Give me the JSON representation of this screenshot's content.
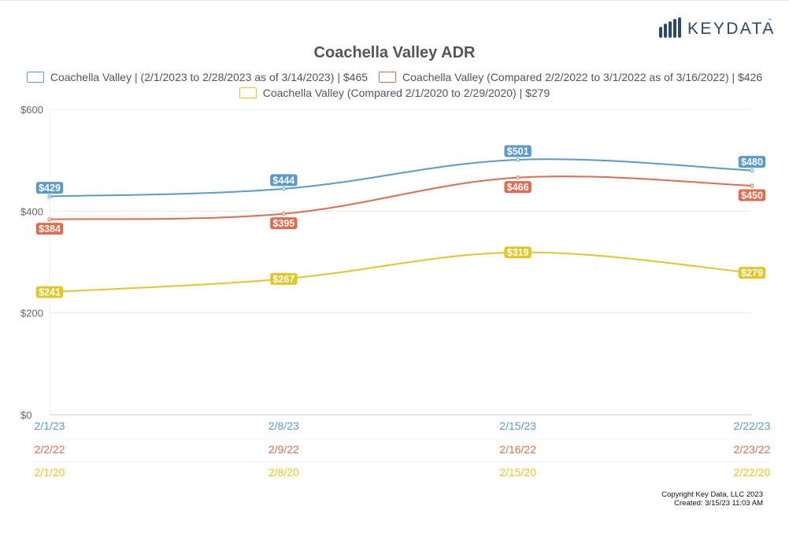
{
  "logo": {
    "text": "KEYDATA",
    "tm": "™",
    "color": "#2b4a6b"
  },
  "chart_data": {
    "type": "line",
    "title": "Coachella Valley ADR",
    "ylim": [
      0,
      600
    ],
    "yticks": [
      0,
      200,
      400,
      600
    ],
    "ytick_labels": [
      "$0",
      "$200",
      "$400",
      "$600"
    ],
    "grid": true,
    "legend_position": "top",
    "series": [
      {
        "name": "Coachella Valley | (2/1/2023 to 2/28/2023 as of 3/14/2023) | $465",
        "color": "#5b9bc8",
        "x_labels": [
          "2/1/23",
          "2/8/23",
          "2/15/23",
          "2/22/23"
        ],
        "values": [
          429,
          444,
          501,
          480
        ],
        "value_labels": [
          "$429",
          "$444",
          "$501",
          "$480"
        ],
        "label_pos": [
          "above",
          "above",
          "above",
          "above"
        ]
      },
      {
        "name": "Coachella Valley (Compared 2/2/2022 to 3/1/2022 as of 3/16/2022) | $426",
        "color": "#e06c50",
        "x_labels": [
          "2/2/22",
          "2/9/22",
          "2/16/22",
          "2/23/22"
        ],
        "values": [
          384,
          395,
          466,
          450
        ],
        "value_labels": [
          "$384",
          "$395",
          "$466",
          "$450"
        ],
        "label_pos": [
          "below",
          "below",
          "below",
          "below"
        ]
      },
      {
        "name": "Coachella Valley (Compared 2/1/2020 to 2/29/2020) | $279",
        "color": "#e3c72a",
        "x_labels": [
          "2/1/20",
          "2/8/20",
          "2/15/20",
          "2/22/20"
        ],
        "values": [
          241,
          267,
          319,
          279
        ],
        "value_labels": [
          "$241",
          "$267",
          "$319",
          "$279"
        ],
        "label_pos": [
          "on",
          "on",
          "on",
          "on"
        ]
      }
    ]
  },
  "footer": {
    "copyright": "Copyright Key Data, LLC 2023",
    "created": "Created: 3/15/23 11:03 AM"
  }
}
